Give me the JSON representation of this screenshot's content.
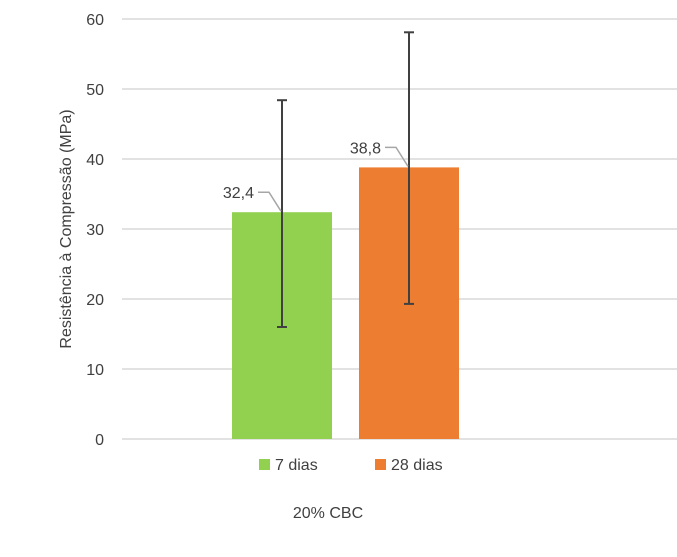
{
  "chart_data": {
    "type": "bar",
    "title": "",
    "xlabel": "20% CBC",
    "ylabel": "Resistência à Compressão (MPa)",
    "ylim": [
      0,
      60
    ],
    "yticks": [
      0,
      10,
      20,
      30,
      40,
      50,
      60
    ],
    "grid": true,
    "legend_position": "bottom",
    "categories": [
      "20% CBC"
    ],
    "series": [
      {
        "name": "7 dias",
        "values": [
          32.4
        ],
        "label": "32,4",
        "error_low": [
          16.0
        ],
        "error_high": [
          48.4
        ],
        "color": "#92D050"
      },
      {
        "name": "28 dias",
        "values": [
          38.8
        ],
        "label": "38,8",
        "error_low": [
          19.3
        ],
        "error_high": [
          58.1
        ],
        "color": "#ED7D31"
      }
    ]
  }
}
